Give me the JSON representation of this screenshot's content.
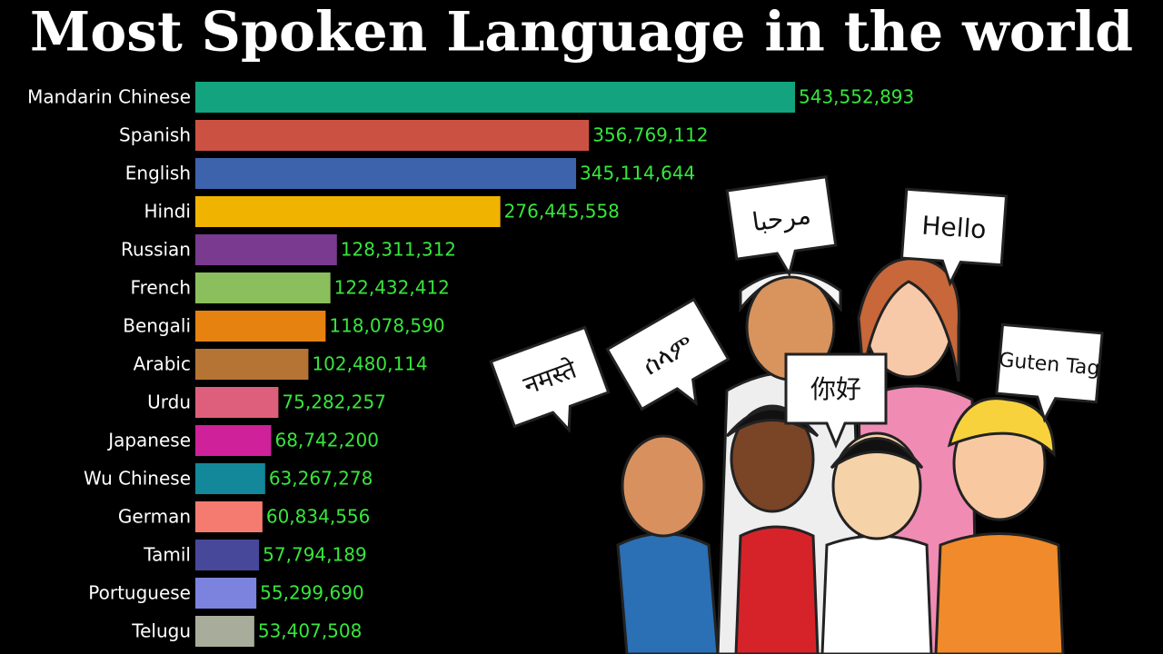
{
  "chart_data": {
    "type": "hbar",
    "title": "Most Spoken Language in the world",
    "categories": [
      "Mandarin Chinese",
      "Spanish",
      "English",
      "Hindi",
      "Russian",
      "French",
      "Bengali",
      "Arabic",
      "Urdu",
      "Japanese",
      "Wu Chinese",
      "German",
      "Tamil",
      "Portuguese",
      "Telugu"
    ],
    "values": [
      543552893,
      356769112,
      345114644,
      276445558,
      128311312,
      122432412,
      118078590,
      102480114,
      75282257,
      68742200,
      63267278,
      60834556,
      57794189,
      55299690,
      53407508
    ],
    "value_labels": [
      "543,552,893",
      "356,769,112",
      "345,114,644",
      "276,445,558",
      "128,311,312",
      "122,432,412",
      "118,078,590",
      "102,480,114",
      "75,282,257",
      "68,742,200",
      "63,267,278",
      "60,834,556",
      "57,794,189",
      "55,299,690",
      "53,407,508"
    ],
    "colors": [
      "#13a37f",
      "#cb5242",
      "#3d63ad",
      "#f0b400",
      "#7a3a8f",
      "#8bbf5e",
      "#e6820f",
      "#b57434",
      "#de5f7b",
      "#cf2199",
      "#12889a",
      "#f57b70",
      "#48489a",
      "#7b83df",
      "#a8ad9b"
    ],
    "annotations": [
      "مرحبا",
      "Hello",
      "ሰላም",
      "नमस्ते",
      "你好",
      "Guten Tag"
    ]
  }
}
